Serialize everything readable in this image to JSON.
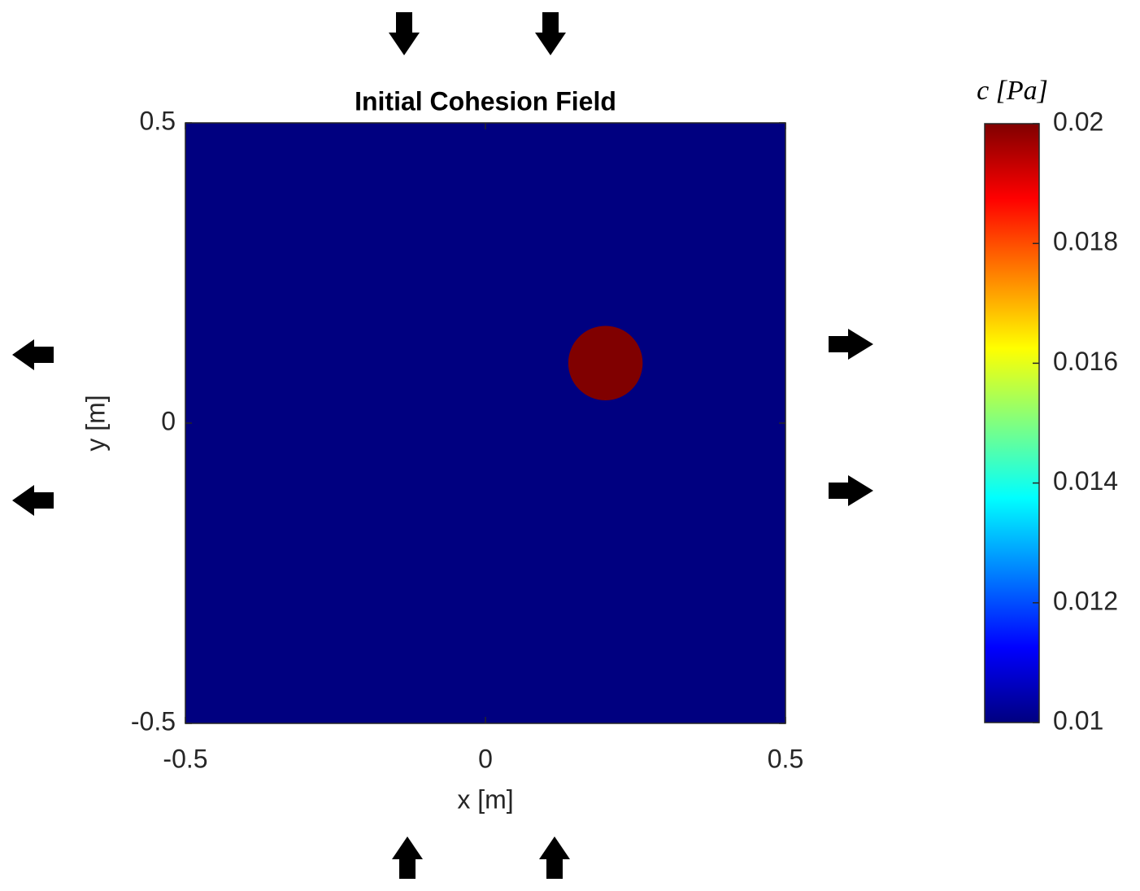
{
  "chart_data": {
    "type": "field",
    "title": "Initial Cohesion Field",
    "xlabel": "x [m]",
    "ylabel": "y [m]",
    "xlim": [
      -0.5,
      0.5
    ],
    "ylim": [
      -0.5,
      0.5
    ],
    "xticks": [
      -0.5,
      0,
      0.5
    ],
    "yticks": [
      -0.5,
      0,
      0.5
    ],
    "colormap": "jet",
    "background_value": 0.01,
    "inclusions": [
      {
        "x": 0.2,
        "y": 0.1,
        "radius": 0.062,
        "value": 0.02
      }
    ],
    "colorbar": {
      "label": "c [Pa]",
      "lim": [
        0.01,
        0.02
      ],
      "ticks": [
        0.01,
        0.012,
        0.014,
        0.016,
        0.018,
        0.02
      ]
    }
  }
}
